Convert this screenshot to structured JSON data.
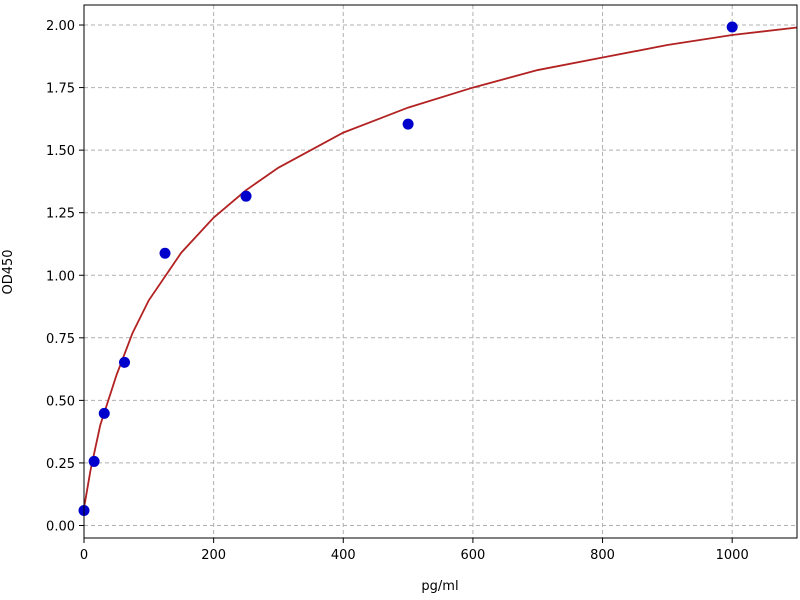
{
  "chart_data": {
    "type": "scatter",
    "xlabel": "pg/ml",
    "ylabel": "OD450",
    "xlim": [
      0,
      1100
    ],
    "xticks": [
      0,
      200,
      400,
      600,
      800,
      1000
    ],
    "ylim": [
      -0.05,
      2.08
    ],
    "yticks": [
      {
        "value": 0,
        "label": "0.00"
      },
      {
        "value": 0.25,
        "label": "0.25"
      },
      {
        "value": 0.5,
        "label": "0.50"
      },
      {
        "value": 0.75,
        "label": "0.75"
      },
      {
        "value": 1,
        "label": "1.00"
      },
      {
        "value": 1.25,
        "label": "1.25"
      },
      {
        "value": 1.5,
        "label": "1.50"
      },
      {
        "value": 1.75,
        "label": "1.75"
      },
      {
        "value": 2,
        "label": "2.00"
      }
    ],
    "grid": true,
    "series": [
      {
        "type": "scatter",
        "color": "#0000cc",
        "x": [
          0,
          15.6,
          31.25,
          62.5,
          125,
          250,
          500,
          1000
        ],
        "values": [
          0.06,
          0.256,
          0.448,
          0.652,
          1.088,
          1.316,
          1.604,
          1.992
        ]
      },
      {
        "type": "line",
        "color": "#b22222",
        "x": [
          0,
          10,
          25,
          50,
          75,
          100,
          150,
          200,
          250,
          300,
          400,
          500,
          600,
          700,
          800,
          900,
          1000,
          1100
        ],
        "values": [
          0.07,
          0.22,
          0.4,
          0.6,
          0.77,
          0.9,
          1.09,
          1.23,
          1.34,
          1.43,
          1.57,
          1.67,
          1.75,
          1.82,
          1.87,
          1.92,
          1.96,
          1.99
        ]
      }
    ]
  }
}
